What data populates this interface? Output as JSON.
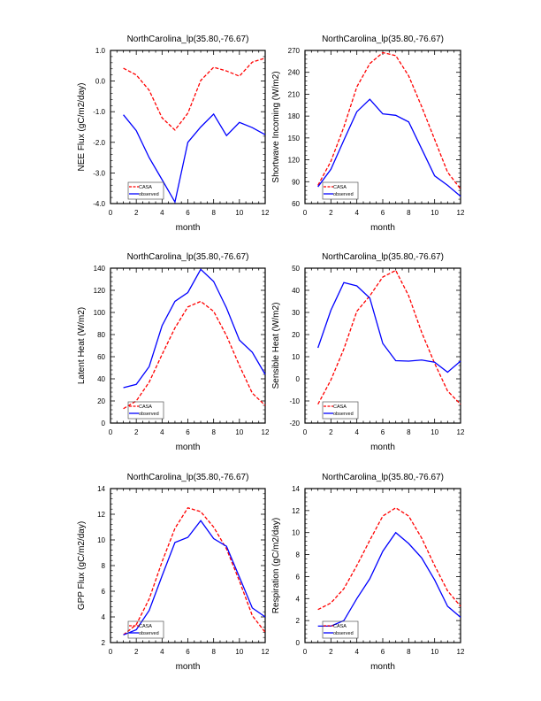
{
  "colors": {
    "casa": "#ff0000",
    "observed": "#0000ff",
    "frame": "#000000"
  },
  "chart_data": [
    {
      "type": "line",
      "title": "NorthCarolina_lp(35.80,-76.67)",
      "xlabel": "month",
      "ylabel": "NEE Flux (gC/m2/day)",
      "xlim": [
        0,
        12
      ],
      "ylim": [
        -4.0,
        1.0
      ],
      "xticks": [
        0,
        2,
        4,
        6,
        8,
        10,
        12
      ],
      "yticks": [
        -4.0,
        -3.0,
        -2.0,
        -1.0,
        0.0,
        1.0
      ],
      "ytick_labels": [
        "-4.0",
        "-3.0",
        "-2.0",
        "-1.0",
        "0.0",
        "1.0"
      ],
      "legend": "bottom-left",
      "x": [
        1,
        2,
        3,
        4,
        5,
        6,
        7,
        8,
        9,
        10,
        11,
        12
      ],
      "series": [
        {
          "name": "CASA",
          "style": "dashed",
          "values": [
            0.42,
            0.2,
            -0.3,
            -1.2,
            -1.6,
            -1.05,
            0.02,
            0.45,
            0.33,
            0.16,
            0.62,
            0.75
          ]
        },
        {
          "name": "observed",
          "style": "solid",
          "values": [
            -1.1,
            -1.62,
            -2.5,
            -3.22,
            -3.95,
            -2.0,
            -1.5,
            -1.08,
            -1.78,
            -1.35,
            -1.52,
            -1.75
          ]
        }
      ]
    },
    {
      "type": "line",
      "title": "NorthCarolina_lp(35.80,-76.67)",
      "xlabel": "month",
      "ylabel": "Shortwave Incoming (W/m2)",
      "xlim": [
        0,
        12
      ],
      "ylim": [
        60,
        270
      ],
      "xticks": [
        0,
        2,
        4,
        6,
        8,
        10,
        12
      ],
      "yticks": [
        60,
        90,
        120,
        150,
        180,
        210,
        240,
        270
      ],
      "ytick_labels": [
        "60",
        "90",
        "120",
        "150",
        "180",
        "210",
        "240",
        "270"
      ],
      "legend": "bottom-left",
      "x": [
        1,
        2,
        3,
        4,
        5,
        6,
        7,
        8,
        9,
        10,
        11,
        12
      ],
      "series": [
        {
          "name": "CASA",
          "style": "dashed",
          "values": [
            85,
            118,
            165,
            220,
            252,
            267,
            263,
            235,
            193,
            148,
            103,
            80
          ]
        },
        {
          "name": "observed",
          "style": "solid",
          "values": [
            83,
            107,
            147,
            186,
            203,
            183,
            181,
            172,
            135,
            98,
            85,
            70
          ]
        }
      ]
    },
    {
      "type": "line",
      "title": "NorthCarolina_lp(35.80,-76.67)",
      "xlabel": "month",
      "ylabel": "Latent Heat (W/m2)",
      "xlim": [
        0,
        12
      ],
      "ylim": [
        0,
        140
      ],
      "xticks": [
        0,
        2,
        4,
        6,
        8,
        10,
        12
      ],
      "yticks": [
        0,
        20,
        40,
        60,
        80,
        100,
        120,
        140
      ],
      "ytick_labels": [
        "0",
        "20",
        "40",
        "60",
        "80",
        "100",
        "120",
        "140"
      ],
      "legend": "bottom-left",
      "x": [
        1,
        2,
        3,
        4,
        5,
        6,
        7,
        8,
        9,
        10,
        11,
        12
      ],
      "series": [
        {
          "name": "CASA",
          "style": "dashed",
          "values": [
            13,
            20,
            37,
            62,
            86,
            105,
            110,
            101,
            79,
            52,
            27,
            16
          ]
        },
        {
          "name": "observed",
          "style": "solid",
          "values": [
            32,
            35,
            51,
            88,
            110,
            118,
            139,
            128,
            104,
            75,
            64,
            44
          ]
        }
      ]
    },
    {
      "type": "line",
      "title": "NorthCarolina_lp(35.80,-76.67)",
      "xlabel": "month",
      "ylabel": "Sensible Heat (W/m2)",
      "xlim": [
        0,
        12
      ],
      "ylim": [
        -20,
        50
      ],
      "xticks": [
        0,
        2,
        4,
        6,
        8,
        10,
        12
      ],
      "yticks": [
        -20,
        -10,
        0,
        10,
        20,
        30,
        40,
        50
      ],
      "ytick_labels": [
        "-20",
        "-10",
        "0",
        "10",
        "20",
        "30",
        "40",
        "50"
      ],
      "legend": "bottom-left",
      "x": [
        1,
        2,
        3,
        4,
        5,
        6,
        7,
        8,
        9,
        10,
        11,
        12
      ],
      "series": [
        {
          "name": "CASA",
          "style": "dashed",
          "values": [
            -11.5,
            -0.5,
            13.5,
            30.5,
            37.5,
            46,
            49,
            37.5,
            21,
            7,
            -5.5,
            -11.5
          ]
        },
        {
          "name": "observed",
          "style": "solid",
          "values": [
            14,
            31,
            43.5,
            42,
            36.5,
            16,
            8.2,
            8,
            8.5,
            7.5,
            3,
            8
          ]
        }
      ]
    },
    {
      "type": "line",
      "title": "NorthCarolina_lp(35.80,-76.67)",
      "xlabel": "month",
      "ylabel": "GPP Flux (gC/m2/day)",
      "xlim": [
        0,
        12
      ],
      "ylim": [
        2,
        14
      ],
      "xticks": [
        0,
        2,
        4,
        6,
        8,
        10,
        12
      ],
      "yticks": [
        2,
        4,
        6,
        8,
        10,
        12,
        14
      ],
      "ytick_labels": [
        "2",
        "4",
        "6",
        "8",
        "10",
        "12",
        "14"
      ],
      "legend": "bottom-left",
      "x": [
        1,
        2,
        3,
        4,
        5,
        6,
        7,
        8,
        9,
        10,
        11,
        12
      ],
      "series": [
        {
          "name": "CASA",
          "style": "dashed",
          "values": [
            2.6,
            3.4,
            5.4,
            8.3,
            10.9,
            12.5,
            12.2,
            11.0,
            9.3,
            6.8,
            4.1,
            2.8
          ]
        },
        {
          "name": "observed",
          "style": "solid",
          "values": [
            2.6,
            3.0,
            4.5,
            7.2,
            9.8,
            10.2,
            11.5,
            10.1,
            9.5,
            7.1,
            4.7,
            4.0
          ]
        }
      ]
    },
    {
      "type": "line",
      "title": "NorthCarolina_lp(35.80,-76.67)",
      "xlabel": "month",
      "ylabel": "Respiration (gC/m2/day)",
      "xlim": [
        0,
        12
      ],
      "ylim": [
        0,
        14
      ],
      "xticks": [
        0,
        2,
        4,
        6,
        8,
        10,
        12
      ],
      "yticks": [
        0,
        2,
        4,
        6,
        8,
        10,
        12,
        14
      ],
      "ytick_labels": [
        "0",
        "2",
        "4",
        "6",
        "8",
        "10",
        "12",
        "14"
      ],
      "legend": "bottom-left",
      "x": [
        1,
        2,
        3,
        4,
        5,
        6,
        7,
        8,
        9,
        10,
        11,
        12
      ],
      "series": [
        {
          "name": "CASA",
          "style": "dashed",
          "values": [
            3.0,
            3.6,
            4.9,
            7.0,
            9.3,
            11.5,
            12.25,
            11.5,
            9.5,
            7.0,
            4.7,
            3.3
          ]
        },
        {
          "name": "observed",
          "style": "solid",
          "values": [
            1.5,
            1.5,
            2.0,
            4.0,
            5.8,
            8.3,
            10.0,
            9.0,
            7.7,
            5.7,
            3.3,
            2.3
          ]
        }
      ]
    }
  ]
}
